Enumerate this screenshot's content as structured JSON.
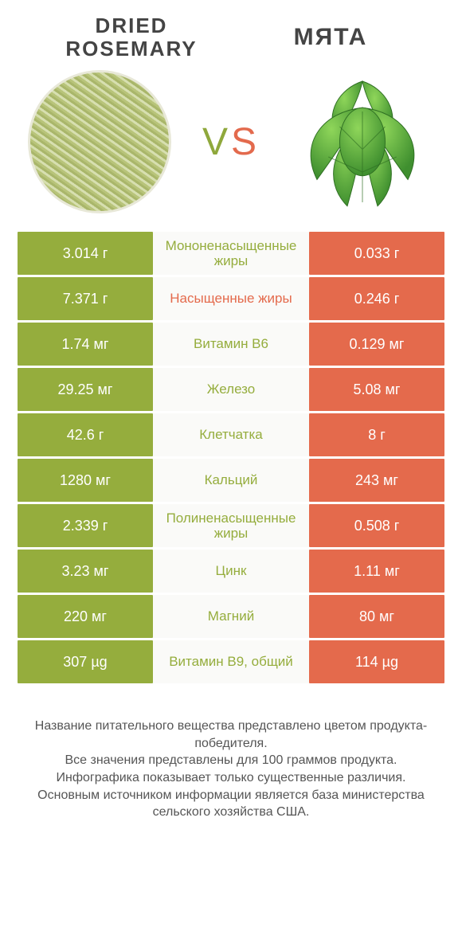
{
  "colors": {
    "left": "#95ad3d",
    "right": "#e46a4c",
    "row_bg": "#fafaf8",
    "text": "#555"
  },
  "products": {
    "left_title": "DRIED\nROSEMARY",
    "right_title": "МЯТА",
    "vs": "VS"
  },
  "rows": [
    {
      "left": "3.014 г",
      "label": "Мононенасыщенные жиры",
      "right": "0.033 г",
      "winner": "left"
    },
    {
      "left": "7.371 г",
      "label": "Насыщенные жиры",
      "right": "0.246 г",
      "winner": "right"
    },
    {
      "left": "1.74 мг",
      "label": "Витамин B6",
      "right": "0.129 мг",
      "winner": "left"
    },
    {
      "left": "29.25 мг",
      "label": "Железо",
      "right": "5.08 мг",
      "winner": "left"
    },
    {
      "left": "42.6 г",
      "label": "Клетчатка",
      "right": "8 г",
      "winner": "left"
    },
    {
      "left": "1280 мг",
      "label": "Кальций",
      "right": "243 мг",
      "winner": "left"
    },
    {
      "left": "2.339 г",
      "label": "Полиненасыщенные жиры",
      "right": "0.508 г",
      "winner": "left"
    },
    {
      "left": "3.23 мг",
      "label": "Цинк",
      "right": "1.11 мг",
      "winner": "left"
    },
    {
      "left": "220 мг",
      "label": "Магний",
      "right": "80 мг",
      "winner": "left"
    },
    {
      "left": "307 µg",
      "label": "Витамин B9, общий",
      "right": "114 µg",
      "winner": "left"
    }
  ],
  "footer": "Название питательного вещества представлено цветом продукта-победителя.\nВсе значения представлены для 100 граммов продукта.\nИнфографика показывает только существенные различия.\nОсновным источником информации является база министерства сельского хозяйства США."
}
